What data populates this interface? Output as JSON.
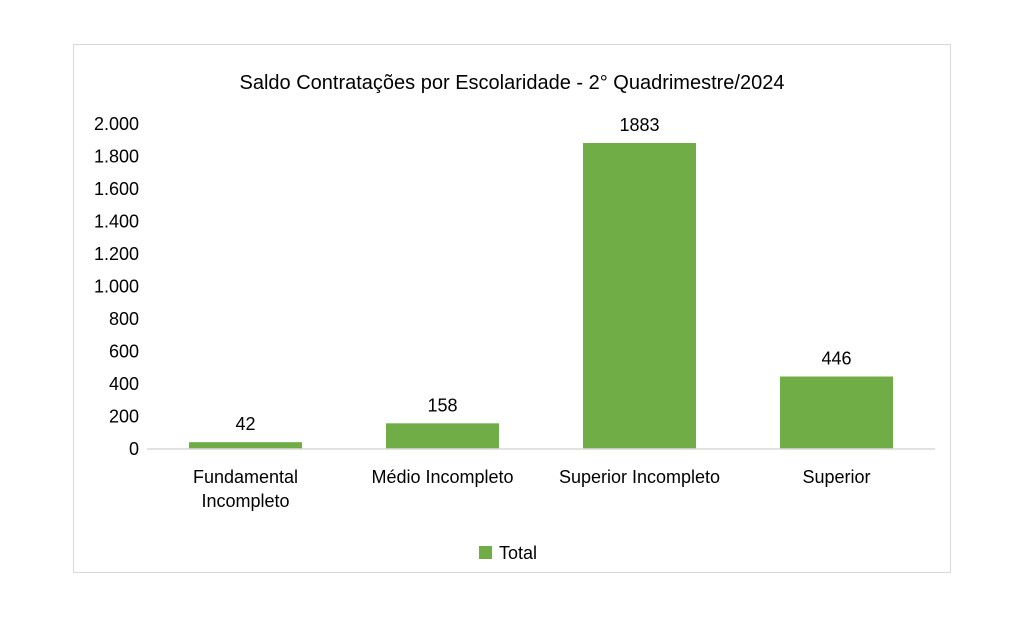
{
  "chart_data": {
    "type": "bar",
    "title": "Saldo Contratações por Escolaridade - 2° Quadrimestre/2024",
    "categories": [
      [
        "Fundamental",
        "Incompleto"
      ],
      [
        "Médio Incompleto"
      ],
      [
        "Superior Incompleto"
      ],
      [
        "Superior"
      ]
    ],
    "series": [
      {
        "name": "Total",
        "values": [
          42,
          158,
          1883,
          446
        ],
        "color": "#70ad47"
      }
    ],
    "data_labels": [
      "42",
      "158",
      "1883",
      "446"
    ],
    "ylim": [
      0,
      2000
    ],
    "yticks": [
      0,
      200,
      400,
      600,
      800,
      1000,
      1200,
      1400,
      1600,
      1800,
      2000
    ],
    "ytick_labels": [
      "0",
      "200",
      "400",
      "600",
      "800",
      "1.000",
      "1.200",
      "1.400",
      "1.600",
      "1.800",
      "2.000"
    ],
    "grid": false,
    "legend": "bottom"
  }
}
